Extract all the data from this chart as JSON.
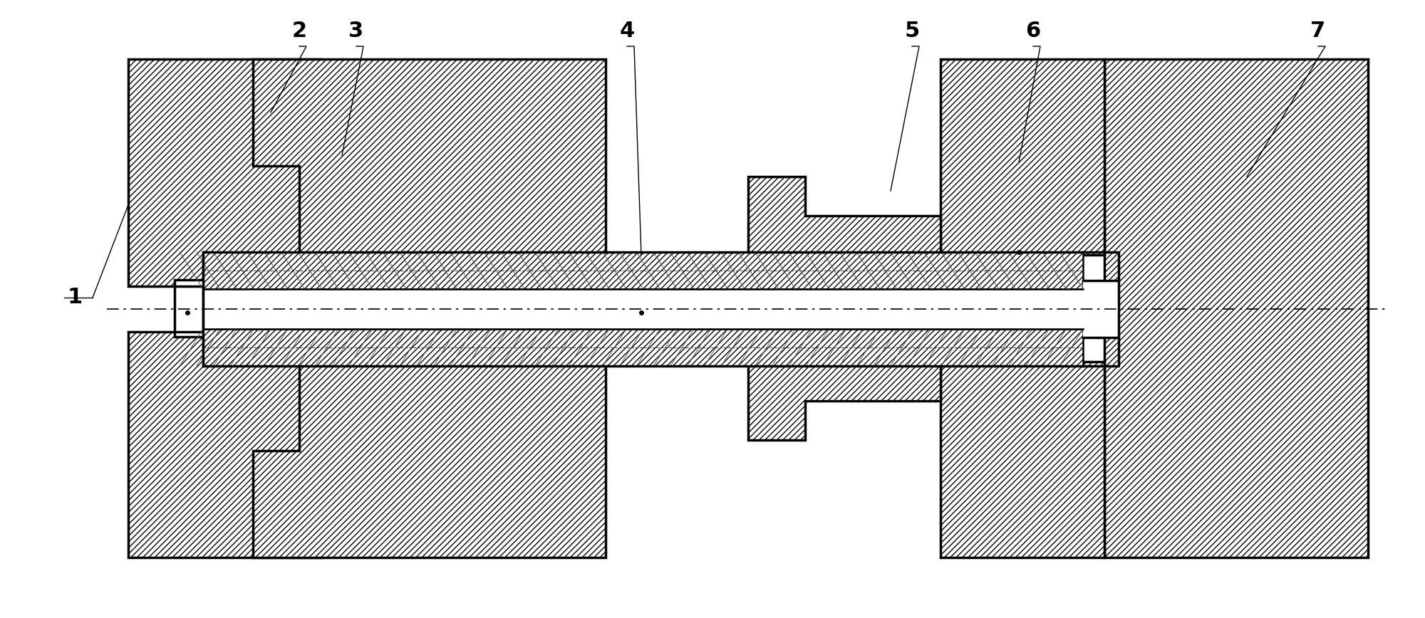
{
  "figure_width": 20.0,
  "figure_height": 8.68,
  "dpi": 100,
  "bg_color": "#ffffff",
  "line_color": "#000000",
  "thick_lw": 2.5,
  "med_lw": 1.8,
  "thin_lw": 1.0,
  "label_fontsize": 22,
  "label_fontweight": "bold"
}
